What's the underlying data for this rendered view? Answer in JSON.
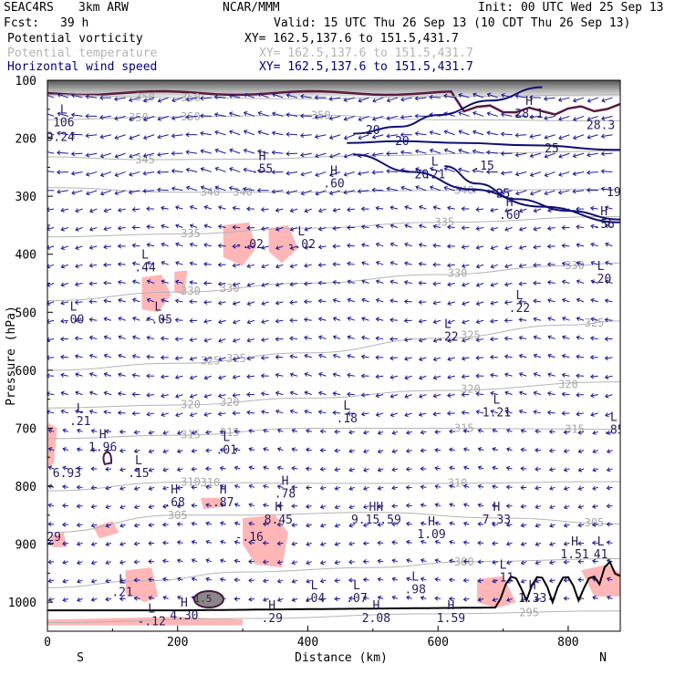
{
  "header": {
    "model": "SEAC4RS",
    "resolution": "3km ARW",
    "source": "NCAR/MMM",
    "init": "Init: 00 UTC Wed 25 Sep 13",
    "fcst_label": "Fcst:",
    "fcst_value": "39 h",
    "valid": "Valid: 15 UTC Thu 26 Sep 13 (10 CDT Thu 26 Sep 13)"
  },
  "fields": [
    {
      "name": "Potential vorticity",
      "xy": "XY= 162.5,137.6 to 151.5,431.7",
      "color": "#000000"
    },
    {
      "name": "Potential temperature",
      "xy": "XY= 162.5,137.6 to 151.5,431.7",
      "color": "#b4b4b4"
    },
    {
      "name": "Horizontal wind speed",
      "xy": "XY= 162.5,137.6 to 151.5,431.7",
      "color": "#00007a"
    }
  ],
  "chart_data": {
    "type": "cross-section",
    "xlabel": "Distance (km)",
    "ylabel": "Pressure (hPa)",
    "xlim": [
      0,
      880
    ],
    "ylim": [
      1050,
      100
    ],
    "x_ticks": [
      0,
      200,
      400,
      600,
      800
    ],
    "y_ticks": [
      100,
      200,
      300,
      400,
      500,
      600,
      700,
      800,
      900,
      1000
    ],
    "endpoint_labels": {
      "left": "S",
      "right": "N"
    },
    "theta_contours": [
      {
        "level": "350",
        "points": [
          [
            0,
            125
          ],
          [
            200,
            130
          ],
          [
            400,
            132
          ],
          [
            600,
            128
          ],
          [
            880,
            125
          ]
        ],
        "labels": [
          [
            150,
            128
          ],
          [
            220,
            130
          ]
        ]
      },
      {
        "level": "350",
        "points": [
          [
            0,
            168
          ],
          [
            200,
            163
          ],
          [
            400,
            160
          ],
          [
            600,
            168
          ],
          [
            880,
            170
          ]
        ],
        "labels": [
          [
            140,
            165
          ],
          [
            220,
            163
          ],
          [
            420,
            160
          ]
        ]
      },
      {
        "level": "345",
        "points": [
          [
            0,
            232
          ],
          [
            150,
            237
          ],
          [
            300,
            236
          ],
          [
            500,
            230
          ],
          [
            700,
            225
          ],
          [
            880,
            222
          ]
        ],
        "labels": [
          [
            150,
            236
          ]
        ]
      },
      {
        "level": "340",
        "points": [
          [
            0,
            285
          ],
          [
            200,
            293
          ],
          [
            400,
            293
          ],
          [
            600,
            290
          ],
          [
            880,
            288
          ]
        ],
        "labels": [
          [
            250,
            293
          ],
          [
            300,
            293
          ],
          [
            640,
            290
          ]
        ]
      },
      {
        "level": "335",
        "points": [
          [
            0,
            370
          ],
          [
            200,
            365
          ],
          [
            400,
            355
          ],
          [
            600,
            345
          ],
          [
            880,
            335
          ]
        ],
        "labels": [
          [
            220,
            365
          ],
          [
            610,
            348
          ]
        ]
      },
      {
        "level": "330",
        "points": [
          [
            0,
            480
          ],
          [
            200,
            465
          ],
          [
            400,
            450
          ],
          [
            600,
            435
          ],
          [
            800,
            420
          ],
          [
            880,
            415
          ]
        ],
        "labels": [
          [
            220,
            466
          ],
          [
            280,
            462
          ],
          [
            630,
            438
          ],
          [
            810,
            418
          ]
        ]
      },
      {
        "level": "325",
        "points": [
          [
            0,
            600
          ],
          [
            200,
            588
          ],
          [
            400,
            570
          ],
          [
            600,
            545
          ],
          [
            800,
            522
          ],
          [
            880,
            515
          ]
        ],
        "labels": [
          [
            250,
            588
          ],
          [
            290,
            585
          ],
          [
            650,
            548
          ],
          [
            840,
            518
          ]
        ]
      },
      {
        "level": "320",
        "points": [
          [
            0,
            665
          ],
          [
            200,
            660
          ],
          [
            400,
            648
          ],
          [
            600,
            635
          ],
          [
            880,
            620
          ]
        ],
        "labels": [
          [
            220,
            662
          ],
          [
            280,
            660
          ],
          [
            650,
            638
          ],
          [
            800,
            620
          ]
        ]
      },
      {
        "level": "315",
        "points": [
          [
            0,
            718
          ],
          [
            200,
            712
          ],
          [
            400,
            700
          ],
          [
            600,
            700
          ],
          [
            880,
            702
          ]
        ],
        "labels": [
          [
            220,
            715
          ],
          [
            280,
            712
          ],
          [
            640,
            700
          ],
          [
            810,
            702
          ]
        ]
      },
      {
        "level": "310",
        "points": [
          [
            0,
            808
          ],
          [
            200,
            793
          ],
          [
            400,
            795
          ],
          [
            600,
            795
          ],
          [
            880,
            792
          ]
        ],
        "labels": [
          [
            220,
            793
          ],
          [
            250,
            793
          ],
          [
            630,
            795
          ]
        ]
      },
      {
        "level": "305",
        "points": [
          [
            0,
            880
          ],
          [
            200,
            850
          ],
          [
            300,
            850
          ],
          [
            500,
            845
          ],
          [
            700,
            855
          ],
          [
            880,
            865
          ]
        ],
        "labels": [
          [
            200,
            850
          ],
          [
            840,
            855
          ]
        ]
      },
      {
        "level": "300",
        "points": [
          [
            0,
            975
          ],
          [
            150,
            963
          ],
          [
            300,
            948
          ],
          [
            500,
            940
          ],
          [
            650,
            930
          ],
          [
            880,
            925
          ]
        ],
        "labels": [
          [
            640,
            932
          ]
        ]
      },
      {
        "level": "295",
        "points": [
          [
            0,
            1035
          ],
          [
            300,
            1028
          ],
          [
            600,
            1020
          ],
          [
            880,
            1015
          ]
        ],
        "labels": [
          [
            740,
            1025
          ]
        ]
      }
    ],
    "wind_speed_contours": [
      {
        "level": "20",
        "points": [
          [
            470,
            192
          ],
          [
            540,
            180
          ],
          [
            600,
            160
          ],
          [
            680,
            135
          ],
          [
            760,
            112
          ]
        ],
        "labels": [
          [
            500,
            185
          ]
        ]
      },
      {
        "level": "20",
        "points": [
          [
            460,
            208
          ],
          [
            540,
            205
          ],
          [
            640,
            208
          ],
          [
            740,
            212
          ],
          [
            880,
            220
          ]
        ],
        "labels": [
          [
            545,
            205
          ]
        ]
      },
      {
        "level": "20",
        "points": [
          [
            470,
            228
          ],
          [
            560,
            258
          ],
          [
            650,
            288
          ],
          [
            760,
            318
          ],
          [
            880,
            345
          ]
        ],
        "labels": [
          [
            575,
            262
          ]
        ]
      },
      {
        "level": "25",
        "points": [
          [
            610,
            248
          ],
          [
            660,
            278
          ],
          [
            720,
            305
          ],
          [
            800,
            325
          ],
          [
            880,
            340
          ]
        ],
        "labels": [
          [
            700,
            300
          ]
        ]
      }
    ],
    "pv_labels": [
      {
        "t": "L",
        "d": "106",
        "x": 25,
        "p": 170
      },
      {
        "t": "",
        "d": "9.24",
        "x": 20,
        "p": 195
      },
      {
        "t": "H",
        "d": ".55",
        "x": 330,
        "p": 250
      },
      {
        "t": "H",
        "d": ".60",
        "x": 440,
        "p": 275
      },
      {
        "t": "L",
        "d": ".21",
        "x": 595,
        "p": 260
      },
      {
        "t": "",
        "d": ".15",
        "x": 670,
        "p": 245
      },
      {
        "t": "H",
        "d": "28.1",
        "x": 740,
        "p": 155
      },
      {
        "t": "",
        "d": "28.3",
        "x": 850,
        "p": 175
      },
      {
        "t": "",
        "d": "25",
        "x": 775,
        "p": 215
      },
      {
        "t": "",
        "d": "19",
        "x": 870,
        "p": 290
      },
      {
        "t": "H",
        "d": ".60",
        "x": 710,
        "p": 330
      },
      {
        "t": "H",
        "d": ".56",
        "x": 855,
        "p": 345
      },
      {
        "t": "",
        "d": "-.02",
        "x": 310,
        "p": 380
      },
      {
        "t": "L",
        "d": "-.02",
        "x": 390,
        "p": 380
      },
      {
        "t": "L",
        "d": ".44",
        "x": 150,
        "p": 420
      },
      {
        "t": "L",
        "d": ".20",
        "x": 850,
        "p": 440
      },
      {
        "t": "L",
        "d": ".22",
        "x": 725,
        "p": 490
      },
      {
        "t": "L",
        "d": ".00",
        "x": 40,
        "p": 510
      },
      {
        "t": "L",
        "d": "-.05",
        "x": 170,
        "p": 510
      },
      {
        "t": "L",
        "d": ".22",
        "x": 615,
        "p": 540
      },
      {
        "t": "L",
        "d": ".21",
        "x": 50,
        "p": 685
      },
      {
        "t": "L",
        "d": ".18",
        "x": 460,
        "p": 680
      },
      {
        "t": "L",
        "d": "1.21",
        "x": 690,
        "p": 670
      },
      {
        "t": "L",
        "d": ".85",
        "x": 870,
        "p": 700
      },
      {
        "t": "H",
        "d": "1.96",
        "x": 85,
        "p": 730
      },
      {
        "t": "L",
        "d": ".01",
        "x": 275,
        "p": 735
      },
      {
        "t": "",
        "d": "6.93",
        "x": 30,
        "p": 775
      },
      {
        "t": "L",
        "d": ".15",
        "x": 140,
        "p": 775
      },
      {
        "t": "H",
        "d": ".68",
        "x": 195,
        "p": 825
      },
      {
        "t": "H",
        "d": ".87",
        "x": 270,
        "p": 825
      },
      {
        "t": "H",
        "d": ".78",
        "x": 365,
        "p": 810
      },
      {
        "t": "H",
        "d": "8.45",
        "x": 355,
        "p": 855
      },
      {
        "t": "HH",
        "d": "9.15.59",
        "x": 505,
        "p": 855
      },
      {
        "t": "H",
        "d": "7.33",
        "x": 690,
        "p": 855
      },
      {
        "t": "",
        "d": "-.16",
        "x": 310,
        "p": 885
      },
      {
        "t": "H",
        "d": "1.09",
        "x": 590,
        "p": 880
      },
      {
        "t": "H",
        "d": "1.51",
        "x": 810,
        "p": 915
      },
      {
        "t": "L",
        "d": "41",
        "x": 850,
        "p": 915
      },
      {
        "t": "",
        "d": "29",
        "x": 10,
        "p": 885
      },
      {
        "t": "L",
        "d": ".21",
        "x": 115,
        "p": 980
      },
      {
        "t": "L",
        "d": ".98",
        "x": 565,
        "p": 975
      },
      {
        "t": "L",
        "d": ".11",
        "x": 700,
        "p": 955
      },
      {
        "t": "L",
        "d": ".04",
        "x": 410,
        "p": 990
      },
      {
        "t": "L",
        "d": ".07",
        "x": 475,
        "p": 990
      },
      {
        "t": "H",
        "d": "1.33",
        "x": 745,
        "p": 990
      },
      {
        "t": "L",
        "d": "-.12",
        "x": 160,
        "p": 1030
      },
      {
        "t": "H",
        "d": "4.30",
        "x": 210,
        "p": 1020
      },
      {
        "t": "H",
        "d": ".29",
        "x": 345,
        "p": 1025
      },
      {
        "t": "H",
        "d": "2.08",
        "x": 505,
        "p": 1025
      },
      {
        "t": "H",
        "d": "1.59",
        "x": 620,
        "p": 1025
      }
    ],
    "pv_max_contour_label": "1.5",
    "wind_vectors": "horizontal wind arrows at every grid point"
  }
}
